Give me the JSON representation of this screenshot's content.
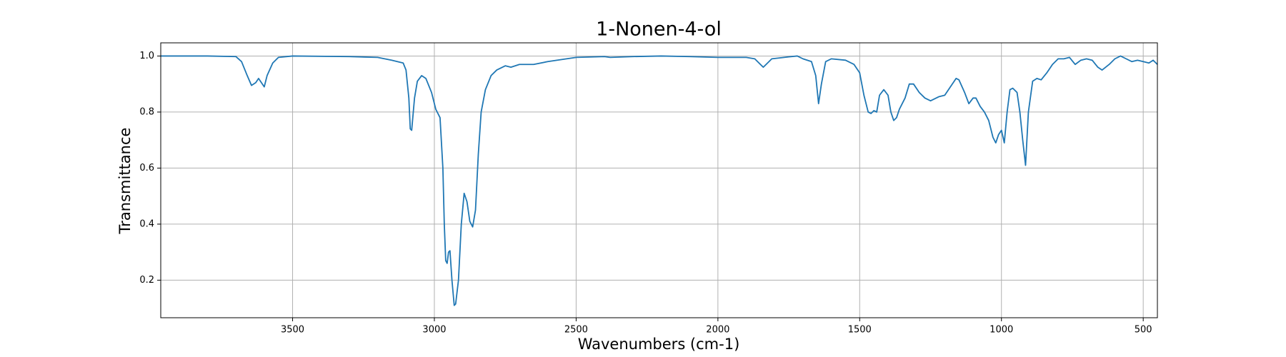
{
  "chart_data": {
    "type": "line",
    "title": "1-Nonen-4-ol",
    "xlabel": "Wavenumbers (cm-1)",
    "ylabel": "Transmittance",
    "xlim": [
      3965,
      450
    ],
    "ylim": [
      0.066,
      1.047
    ],
    "xticks": [
      3500,
      3000,
      2500,
      2000,
      1500,
      1000,
      500
    ],
    "yticks": [
      0.2,
      0.4,
      0.6,
      0.8,
      {
        "value": 1,
        "label": "1.0"
      }
    ],
    "grid": true,
    "series": [
      {
        "color": "#1f77b4",
        "x": [
          3965,
          3800,
          3700,
          3680,
          3660,
          3645,
          3630,
          3620,
          3610,
          3600,
          3590,
          3570,
          3550,
          3500,
          3300,
          3200,
          3150,
          3110,
          3100,
          3090,
          3085,
          3080,
          3070,
          3060,
          3045,
          3030,
          3010,
          2995,
          2980,
          2970,
          2965,
          2960,
          2955,
          2950,
          2945,
          2938,
          2930,
          2925,
          2915,
          2905,
          2895,
          2885,
          2875,
          2865,
          2855,
          2845,
          2835,
          2820,
          2800,
          2780,
          2750,
          2730,
          2700,
          2650,
          2600,
          2500,
          2400,
          2380,
          2300,
          2200,
          2100,
          2000,
          1900,
          1870,
          1850,
          1840,
          1830,
          1810,
          1750,
          1720,
          1700,
          1670,
          1655,
          1645,
          1635,
          1620,
          1600,
          1550,
          1520,
          1500,
          1485,
          1470,
          1460,
          1450,
          1440,
          1430,
          1415,
          1400,
          1390,
          1380,
          1370,
          1360,
          1340,
          1325,
          1310,
          1290,
          1270,
          1250,
          1220,
          1200,
          1180,
          1160,
          1150,
          1130,
          1115,
          1100,
          1090,
          1075,
          1060,
          1045,
          1030,
          1020,
          1010,
          1000,
          990,
          980,
          970,
          960,
          945,
          935,
          925,
          915,
          905,
          890,
          875,
          860,
          840,
          820,
          800,
          780,
          760,
          740,
          720,
          700,
          680,
          660,
          645,
          620,
          600,
          580,
          560,
          540,
          520,
          500,
          480,
          465,
          450
        ],
        "values": [
          1.0,
          1.0,
          0.998,
          0.98,
          0.93,
          0.895,
          0.905,
          0.92,
          0.905,
          0.89,
          0.93,
          0.975,
          0.995,
          1.0,
          0.998,
          0.995,
          0.985,
          0.975,
          0.95,
          0.85,
          0.74,
          0.735,
          0.85,
          0.91,
          0.93,
          0.92,
          0.87,
          0.81,
          0.78,
          0.6,
          0.4,
          0.27,
          0.26,
          0.3,
          0.305,
          0.2,
          0.11,
          0.115,
          0.2,
          0.4,
          0.51,
          0.48,
          0.41,
          0.39,
          0.45,
          0.65,
          0.8,
          0.88,
          0.93,
          0.95,
          0.965,
          0.96,
          0.97,
          0.97,
          0.98,
          0.995,
          0.998,
          0.995,
          0.998,
          1.0,
          0.998,
          0.995,
          0.995,
          0.99,
          0.97,
          0.96,
          0.97,
          0.99,
          0.997,
          1.0,
          0.99,
          0.98,
          0.93,
          0.83,
          0.9,
          0.98,
          0.99,
          0.985,
          0.97,
          0.94,
          0.86,
          0.8,
          0.795,
          0.805,
          0.8,
          0.86,
          0.88,
          0.86,
          0.8,
          0.77,
          0.78,
          0.81,
          0.85,
          0.9,
          0.9,
          0.87,
          0.85,
          0.84,
          0.855,
          0.86,
          0.89,
          0.92,
          0.915,
          0.87,
          0.83,
          0.85,
          0.85,
          0.82,
          0.8,
          0.77,
          0.71,
          0.69,
          0.72,
          0.735,
          0.69,
          0.8,
          0.88,
          0.885,
          0.87,
          0.8,
          0.7,
          0.61,
          0.8,
          0.91,
          0.92,
          0.915,
          0.94,
          0.97,
          0.99,
          0.99,
          0.995,
          0.97,
          0.985,
          0.99,
          0.985,
          0.96,
          0.95,
          0.97,
          0.99,
          1.0,
          0.99,
          0.98,
          0.985,
          0.98,
          0.975,
          0.985,
          0.97
        ]
      }
    ]
  }
}
